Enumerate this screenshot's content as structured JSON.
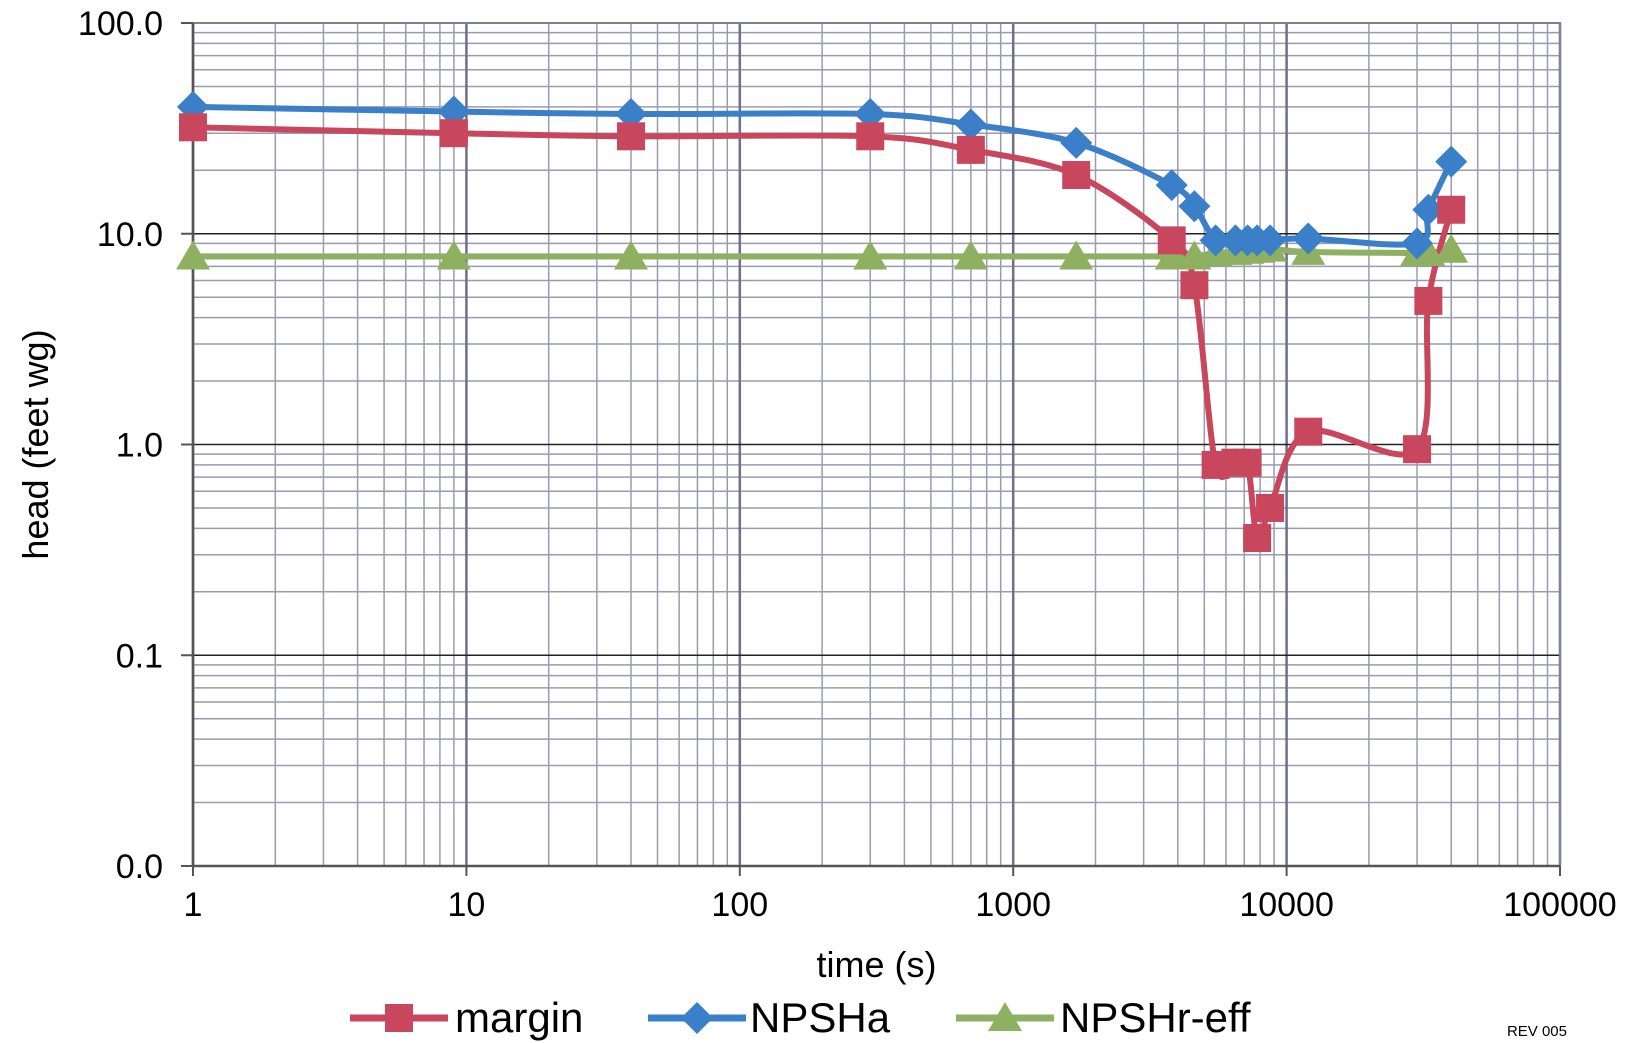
{
  "chart_data": {
    "type": "line",
    "xlabel": "time (s)",
    "ylabel": "head (feet wg)",
    "x_scale": "log",
    "y_scale": "log",
    "xlim": [
      1,
      100000
    ],
    "ylim": [
      0.01,
      100
    ],
    "x_ticks": [
      1,
      10,
      100,
      1000,
      10000,
      100000
    ],
    "x_tick_labels": [
      "1",
      "10",
      "100",
      "1000",
      "10000",
      "100000"
    ],
    "y_ticks": [
      0.01,
      0.1,
      1,
      10,
      100
    ],
    "y_tick_labels": [
      "0.0",
      "0.1",
      "1.0",
      "10.0",
      "100.0"
    ],
    "grid": true,
    "legend_position": "bottom",
    "series": [
      {
        "name": "margin",
        "color": "#C8475D",
        "marker": "square",
        "x": [
          1,
          9,
          40,
          300,
          700,
          1700,
          3800,
          4600,
          5500,
          6500,
          7200,
          7800,
          8700,
          12000,
          30000,
          33000,
          40000
        ],
        "y": [
          32,
          30,
          29,
          29,
          25,
          19,
          9.3,
          5.7,
          0.8,
          0.82,
          0.82,
          0.36,
          0.5,
          1.15,
          0.95,
          4.8,
          13
        ]
      },
      {
        "name": "NPSHa",
        "color": "#3A7FC8",
        "marker": "diamond",
        "x": [
          1,
          9,
          40,
          300,
          700,
          1700,
          3800,
          4600,
          5500,
          6500,
          7200,
          7800,
          8700,
          12000,
          30000,
          33000,
          40000
        ],
        "y": [
          40,
          38,
          37,
          37,
          33,
          27,
          17,
          13.5,
          9.3,
          9.3,
          9.3,
          9.3,
          9.3,
          9.5,
          9,
          13,
          22
        ]
      },
      {
        "name": "NPSHr-eff",
        "color": "#8DB161",
        "marker": "triangle",
        "x": [
          1,
          9,
          40,
          300,
          700,
          1700,
          3800,
          4600,
          5500,
          6500,
          7200,
          7800,
          8700,
          12000,
          30000,
          33000,
          40000
        ],
        "y": [
          7.8,
          7.8,
          7.8,
          7.8,
          7.8,
          7.8,
          7.8,
          7.8,
          8.1,
          8.2,
          8.3,
          8.4,
          8.5,
          8.2,
          8.1,
          8.1,
          8.4
        ]
      }
    ]
  },
  "revision": "REV 005"
}
